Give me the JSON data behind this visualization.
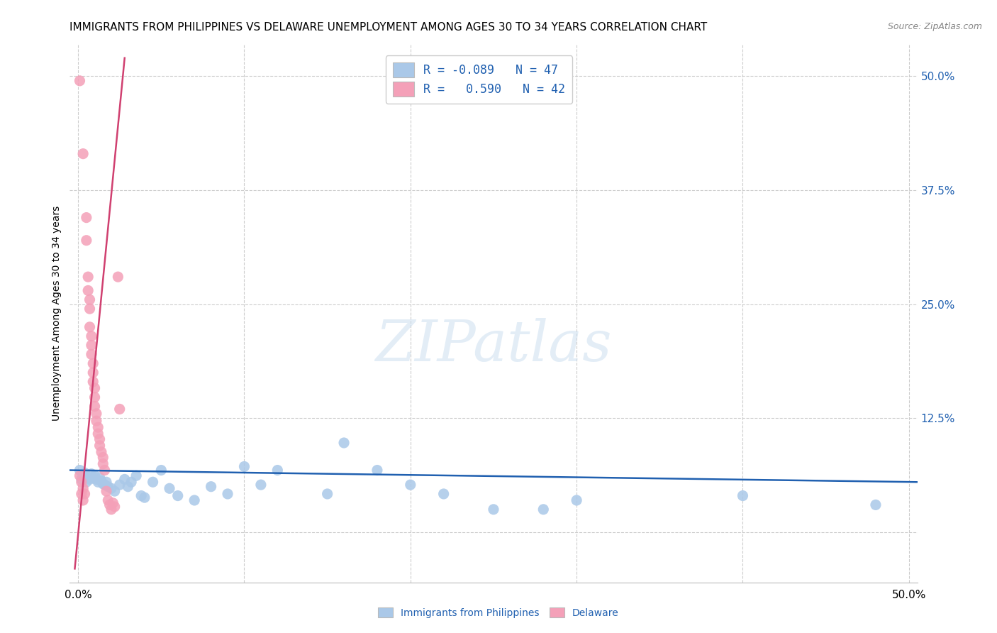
{
  "title": "IMMIGRANTS FROM PHILIPPINES VS DELAWARE UNEMPLOYMENT AMONG AGES 30 TO 34 YEARS CORRELATION CHART",
  "source": "Source: ZipAtlas.com",
  "ylabel": "Unemployment Among Ages 30 to 34 years",
  "yticks": [
    0.0,
    0.125,
    0.25,
    0.375,
    0.5
  ],
  "ytick_labels": [
    "",
    "12.5%",
    "25.0%",
    "37.5%",
    "50.0%"
  ],
  "xlim": [
    -0.005,
    0.505
  ],
  "ylim": [
    -0.055,
    0.535
  ],
  "legend_line1": "R = -0.089   N = 47",
  "legend_line2": "R =   0.590   N = 42",
  "watermark": "ZIPatlas",
  "blue_scatter": [
    [
      0.001,
      0.068
    ],
    [
      0.002,
      0.058
    ],
    [
      0.003,
      0.062
    ],
    [
      0.004,
      0.065
    ],
    [
      0.005,
      0.055
    ],
    [
      0.006,
      0.06
    ],
    [
      0.007,
      0.058
    ],
    [
      0.008,
      0.064
    ],
    [
      0.009,
      0.06
    ],
    [
      0.01,
      0.062
    ],
    [
      0.011,
      0.058
    ],
    [
      0.012,
      0.055
    ],
    [
      0.013,
      0.06
    ],
    [
      0.014,
      0.056
    ],
    [
      0.015,
      0.053
    ],
    [
      0.016,
      0.052
    ],
    [
      0.017,
      0.055
    ],
    [
      0.018,
      0.05
    ],
    [
      0.02,
      0.048
    ],
    [
      0.022,
      0.045
    ],
    [
      0.025,
      0.052
    ],
    [
      0.028,
      0.058
    ],
    [
      0.03,
      0.05
    ],
    [
      0.032,
      0.055
    ],
    [
      0.035,
      0.062
    ],
    [
      0.038,
      0.04
    ],
    [
      0.04,
      0.038
    ],
    [
      0.045,
      0.055
    ],
    [
      0.05,
      0.068
    ],
    [
      0.055,
      0.048
    ],
    [
      0.06,
      0.04
    ],
    [
      0.07,
      0.035
    ],
    [
      0.08,
      0.05
    ],
    [
      0.09,
      0.042
    ],
    [
      0.1,
      0.072
    ],
    [
      0.11,
      0.052
    ],
    [
      0.12,
      0.068
    ],
    [
      0.15,
      0.042
    ],
    [
      0.16,
      0.098
    ],
    [
      0.18,
      0.068
    ],
    [
      0.2,
      0.052
    ],
    [
      0.22,
      0.042
    ],
    [
      0.25,
      0.025
    ],
    [
      0.28,
      0.025
    ],
    [
      0.3,
      0.035
    ],
    [
      0.4,
      0.04
    ],
    [
      0.48,
      0.03
    ]
  ],
  "pink_scatter": [
    [
      0.001,
      0.495
    ],
    [
      0.003,
      0.415
    ],
    [
      0.005,
      0.345
    ],
    [
      0.005,
      0.32
    ],
    [
      0.006,
      0.28
    ],
    [
      0.006,
      0.265
    ],
    [
      0.007,
      0.255
    ],
    [
      0.007,
      0.245
    ],
    [
      0.007,
      0.225
    ],
    [
      0.008,
      0.215
    ],
    [
      0.008,
      0.205
    ],
    [
      0.008,
      0.195
    ],
    [
      0.009,
      0.185
    ],
    [
      0.009,
      0.175
    ],
    [
      0.009,
      0.165
    ],
    [
      0.01,
      0.158
    ],
    [
      0.01,
      0.148
    ],
    [
      0.01,
      0.138
    ],
    [
      0.011,
      0.13
    ],
    [
      0.011,
      0.122
    ],
    [
      0.012,
      0.115
    ],
    [
      0.012,
      0.108
    ],
    [
      0.013,
      0.102
    ],
    [
      0.013,
      0.095
    ],
    [
      0.014,
      0.088
    ],
    [
      0.015,
      0.082
    ],
    [
      0.015,
      0.075
    ],
    [
      0.016,
      0.068
    ],
    [
      0.017,
      0.045
    ],
    [
      0.018,
      0.035
    ],
    [
      0.019,
      0.03
    ],
    [
      0.02,
      0.025
    ],
    [
      0.021,
      0.032
    ],
    [
      0.022,
      0.028
    ],
    [
      0.002,
      0.055
    ],
    [
      0.003,
      0.048
    ],
    [
      0.004,
      0.042
    ],
    [
      0.024,
      0.28
    ],
    [
      0.025,
      0.135
    ],
    [
      0.001,
      0.062
    ],
    [
      0.002,
      0.042
    ],
    [
      0.003,
      0.035
    ]
  ],
  "blue_line_x": [
    -0.005,
    0.505
  ],
  "blue_line_y": [
    0.068,
    0.055
  ],
  "pink_line_x": [
    -0.002,
    0.028
  ],
  "pink_line_y": [
    -0.04,
    0.52
  ],
  "scatter_size": 120,
  "blue_color": "#aac8e8",
  "pink_color": "#f4a0b8",
  "blue_line_color": "#2060b0",
  "pink_line_color": "#d04070",
  "title_fontsize": 11,
  "axis_label_fontsize": 10,
  "tick_fontsize": 11,
  "legend_fontsize": 12
}
